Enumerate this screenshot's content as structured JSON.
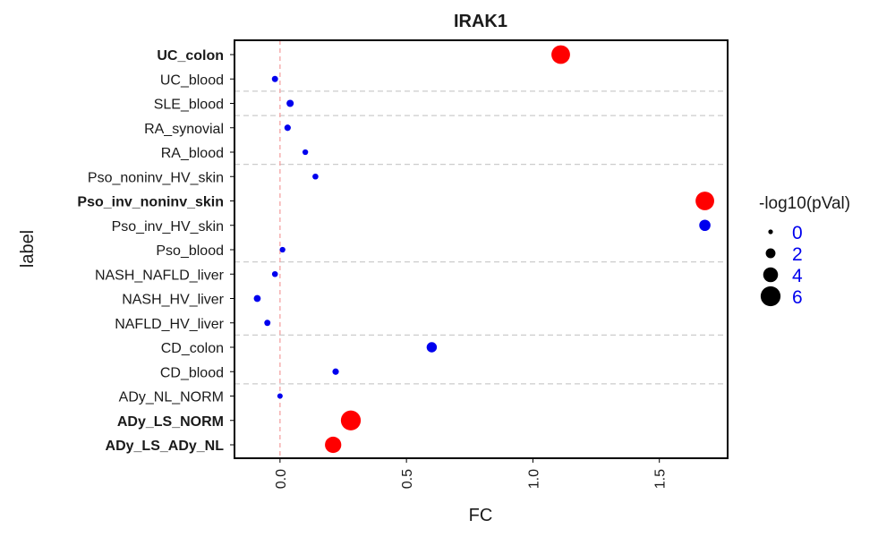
{
  "chart_data": {
    "type": "scatter",
    "title": "IRAK1",
    "xlabel": "FC",
    "ylabel": "label",
    "xlim": [
      -0.18,
      1.77
    ],
    "x_ticks": [
      0.0,
      0.5,
      1.0,
      1.5
    ],
    "x_tick_labels": [
      "0.0",
      "0.5",
      "1.0",
      "1.5"
    ],
    "grid": false,
    "reference_line": {
      "x": 0,
      "color": "#f4a3a3",
      "style": "dashed"
    },
    "group_separator_color": "#cccccc",
    "group_separators_after": [
      "UC_blood",
      "SLE_blood",
      "RA_blood",
      "Pso_blood",
      "NAFLD_HV_liver",
      "CD_blood"
    ],
    "colors": {
      "significant": "#ff0000",
      "not_significant": "#0000ee"
    },
    "legend": {
      "title": "-log10(pVal)",
      "placement": "right",
      "label_color": "#0000ee",
      "entries": [
        {
          "label": "0",
          "value": 0
        },
        {
          "label": "2",
          "value": 2
        },
        {
          "label": "4",
          "value": 4
        },
        {
          "label": "6",
          "value": 6
        }
      ]
    },
    "points": [
      {
        "label": "UC_colon",
        "fc": 1.11,
        "neglog10p": 5.5,
        "significant": true,
        "bold": true
      },
      {
        "label": "UC_blood",
        "fc": -0.02,
        "neglog10p": 0.6,
        "significant": false,
        "bold": false
      },
      {
        "label": "SLE_blood",
        "fc": 0.04,
        "neglog10p": 1.0,
        "significant": false,
        "bold": false
      },
      {
        "label": "RA_synovial",
        "fc": 0.03,
        "neglog10p": 0.7,
        "significant": false,
        "bold": false
      },
      {
        "label": "RA_blood",
        "fc": 0.1,
        "neglog10p": 0.4,
        "significant": false,
        "bold": false
      },
      {
        "label": "Pso_noninv_HV_skin",
        "fc": 0.14,
        "neglog10p": 0.5,
        "significant": false,
        "bold": false
      },
      {
        "label": "Pso_inv_noninv_skin",
        "fc": 1.68,
        "neglog10p": 5.5,
        "significant": true,
        "bold": true
      },
      {
        "label": "Pso_inv_HV_skin",
        "fc": 1.68,
        "neglog10p": 2.6,
        "significant": false,
        "bold": false
      },
      {
        "label": "Pso_blood",
        "fc": 0.01,
        "neglog10p": 0.4,
        "significant": false,
        "bold": false
      },
      {
        "label": "NASH_NAFLD_liver",
        "fc": -0.02,
        "neglog10p": 0.5,
        "significant": false,
        "bold": false
      },
      {
        "label": "NASH_HV_liver",
        "fc": -0.09,
        "neglog10p": 0.9,
        "significant": false,
        "bold": false
      },
      {
        "label": "NAFLD_HV_liver",
        "fc": -0.05,
        "neglog10p": 0.6,
        "significant": false,
        "bold": false
      },
      {
        "label": "CD_colon",
        "fc": 0.6,
        "neglog10p": 2.2,
        "significant": false,
        "bold": false
      },
      {
        "label": "CD_blood",
        "fc": 0.22,
        "neglog10p": 0.7,
        "significant": false,
        "bold": false
      },
      {
        "label": "ADy_NL_NORM",
        "fc": 0.0,
        "neglog10p": 0.3,
        "significant": false,
        "bold": false
      },
      {
        "label": "ADy_LS_NORM",
        "fc": 0.28,
        "neglog10p": 6.0,
        "significant": true,
        "bold": true
      },
      {
        "label": "ADy_LS_ADy_NL",
        "fc": 0.21,
        "neglog10p": 4.6,
        "significant": true,
        "bold": true
      }
    ]
  }
}
